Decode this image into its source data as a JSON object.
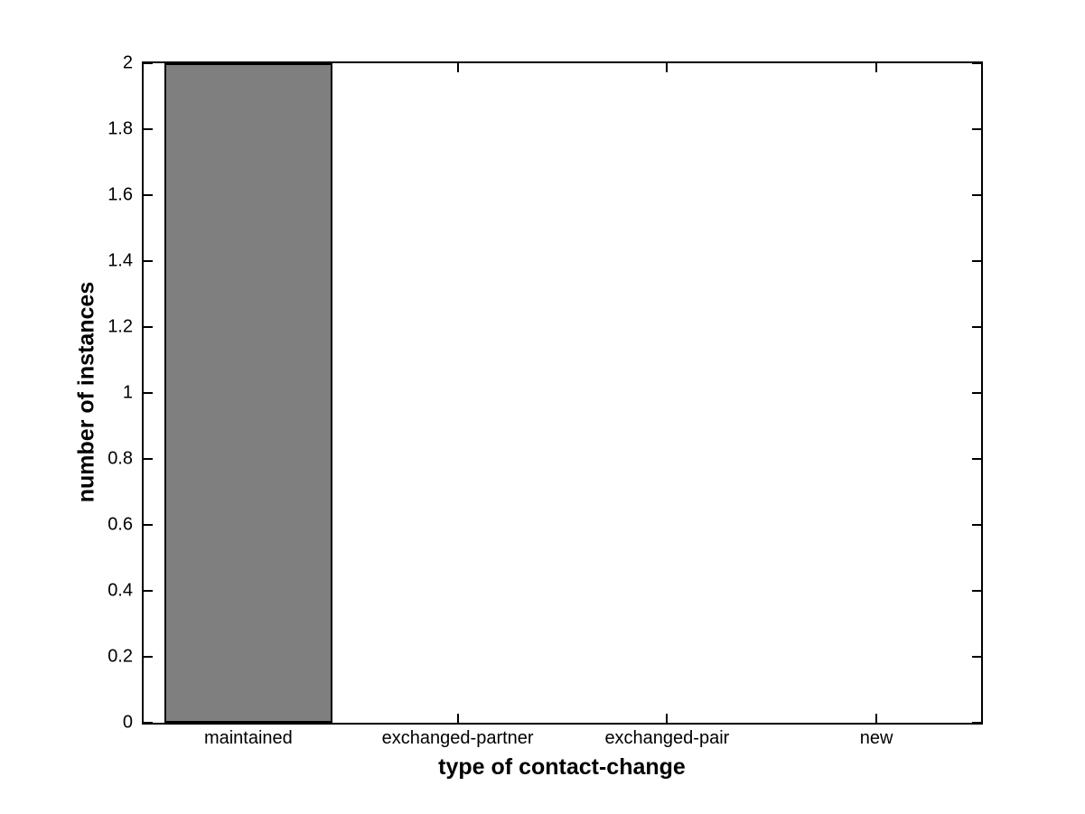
{
  "chart_data": {
    "type": "bar",
    "categories": [
      "maintained",
      "exchanged-partner",
      "exchanged-pair",
      "new"
    ],
    "values": [
      2,
      0,
      0,
      0
    ],
    "title": "",
    "xlabel": "type of contact-change",
    "ylabel": "number of instances",
    "ylim": [
      0,
      2
    ],
    "ytick_step": 0.2,
    "ytick_labels": [
      "0",
      "0.2",
      "0.4",
      "0.6",
      "0.8",
      "1",
      "1.2",
      "1.4",
      "1.6",
      "1.8",
      "2"
    ],
    "bar_width_fraction": 0.8,
    "bar_fill_color": "#7f7f7f",
    "bar_edge_color": "#000000",
    "axis_color": "#000000",
    "background_color": "#ffffff",
    "grid": false,
    "legend": null,
    "tick_direction": "in",
    "box": true
  }
}
